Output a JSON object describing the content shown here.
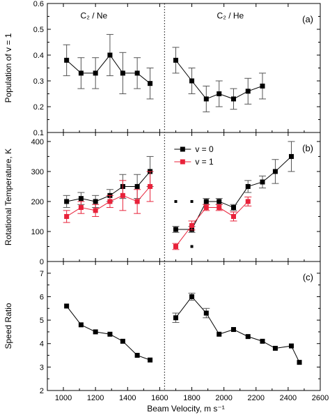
{
  "figure": {
    "xlabel": "Beam Velocity, m s⁻¹",
    "x_ticks": [
      1000,
      1200,
      1400,
      1600,
      1800,
      2000,
      2200,
      2400,
      2600
    ],
    "x_range": [
      900,
      2600
    ],
    "divider_x": 1630
  },
  "chart_data": [
    {
      "type": "line",
      "panel_label": "(a)",
      "ylabel": "Population of v = 1",
      "ylim": [
        0.1,
        0.6
      ],
      "y_ticks": [
        "0.1",
        "0.2",
        "0.3",
        "0.4",
        "0.5",
        "0.6"
      ],
      "annotations": [
        {
          "text": "C₂ / Ne",
          "x": 1190,
          "y": 0.55
        },
        {
          "text": "C₂ / He",
          "x": 2040,
          "y": 0.55
        }
      ],
      "series": [
        {
          "color": "#000000",
          "segments": [
            {
              "x": [
                1020,
                1110,
                1200,
                1290,
                1370,
                1460,
                1540
              ],
              "y": [
                0.38,
                0.33,
                0.33,
                0.4,
                0.33,
                0.33,
                0.29
              ],
              "err": [
                0.06,
                0.06,
                0.06,
                0.08,
                0.08,
                0.06,
                0.06
              ]
            },
            {
              "x": [
                1700,
                1800,
                1890,
                1970,
                2060,
                2150,
                2240
              ],
              "y": [
                0.38,
                0.3,
                0.23,
                0.25,
                0.23,
                0.26,
                0.28
              ],
              "err": [
                0.05,
                0.05,
                0.05,
                0.05,
                0.04,
                0.05,
                0.05
              ]
            }
          ]
        }
      ]
    },
    {
      "type": "line",
      "panel_label": "(b)",
      "ylabel": "Rotational Temperature, K",
      "ylim": [
        0,
        430
      ],
      "y_ticks": [
        "0",
        "100",
        "200",
        "300",
        "400"
      ],
      "legend_position": "top-left",
      "series": [
        {
          "name": "v = 0",
          "color": "#000000",
          "segments": [
            {
              "x": [
                1020,
                1110,
                1200,
                1290,
                1370,
                1460,
                1540
              ],
              "y": [
                200,
                210,
                200,
                220,
                250,
                250,
                300
              ],
              "err": [
                20,
                20,
                20,
                20,
                40,
                40,
                50
              ]
            },
            {
              "x": [
                1700,
                1800,
                1890,
                1970,
                2060,
                2150,
                2240,
                2320,
                2420
              ],
              "y": [
                107,
                107,
                200,
                200,
                180,
                250,
                265,
                300,
                350
              ],
              "err": [
                10,
                10,
                10,
                10,
                10,
                20,
                20,
                40,
                50
              ]
            }
          ],
          "extra_points": {
            "x": [
              1700,
              1800,
              1800
            ],
            "y": [
              200,
              200,
              50
            ]
          }
        },
        {
          "name": "v = 1",
          "color": "#e8223a",
          "segments": [
            {
              "x": [
                1020,
                1110,
                1200,
                1290,
                1370,
                1460,
                1540
              ],
              "y": [
                150,
                180,
                170,
                200,
                220,
                200,
                250
              ],
              "err": [
                20,
                20,
                20,
                20,
                50,
                40,
                50
              ]
            },
            {
              "x": [
                1700,
                1800,
                1890,
                1970,
                2060,
                2150
              ],
              "y": [
                50,
                120,
                180,
                180,
                150,
                200
              ],
              "err": [
                10,
                15,
                10,
                10,
                15,
                15
              ]
            }
          ]
        }
      ]
    },
    {
      "type": "line",
      "panel_label": "(c)",
      "ylabel": "Speed Ratio",
      "ylim": [
        2,
        7.5
      ],
      "y_ticks": [
        "2",
        "3",
        "4",
        "5",
        "6",
        "7"
      ],
      "series": [
        {
          "color": "#000000",
          "segments": [
            {
              "x": [
                1020,
                1110,
                1200,
                1290,
                1370,
                1460,
                1540
              ],
              "y": [
                5.6,
                4.8,
                4.5,
                4.4,
                4.1,
                3.5,
                3.3
              ],
              "err": [
                0,
                0,
                0,
                0,
                0,
                0,
                0
              ]
            },
            {
              "x": [
                1700,
                1800,
                1890,
                1970,
                2060,
                2150,
                2240,
                2320,
                2420,
                2470
              ],
              "y": [
                5.1,
                6.0,
                5.3,
                4.4,
                4.6,
                4.3,
                4.1,
                3.8,
                3.9,
                3.2
              ],
              "err": [
                0.2,
                0.15,
                0.2,
                0,
                0,
                0,
                0,
                0,
                0,
                0
              ]
            }
          ]
        }
      ]
    }
  ]
}
